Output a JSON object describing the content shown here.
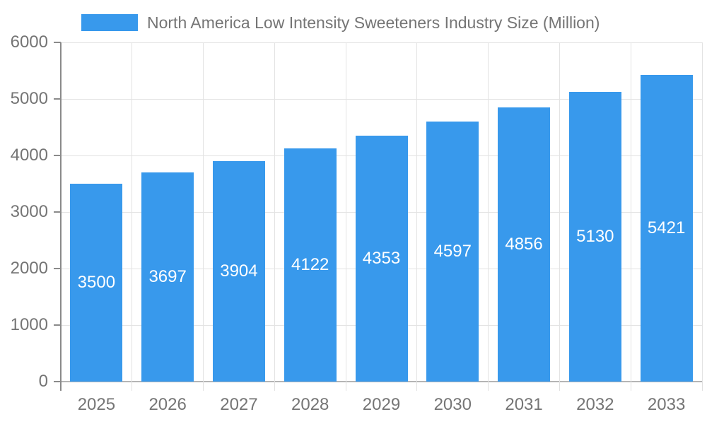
{
  "chart_data": {
    "type": "bar",
    "series_name": "North America Low Intensity Sweeteners Industry Size (Million)",
    "categories": [
      "2025",
      "2026",
      "2027",
      "2028",
      "2029",
      "2030",
      "2031",
      "2032",
      "2033"
    ],
    "values": [
      3500,
      3697,
      3904,
      4122,
      4353,
      4597,
      4856,
      5130,
      5421
    ],
    "ylim": [
      0,
      6000
    ],
    "yticks": [
      0,
      1000,
      2000,
      3000,
      4000,
      5000,
      6000
    ],
    "grid": true,
    "legend_position": "top",
    "value_labels": "inside-center",
    "colors": {
      "bar": "#3899EC",
      "axis_text": "#757575",
      "value_text": "#FFFFFF",
      "grid": "#E3E3E3",
      "y_axis_line": "#8A8A8A",
      "zero_line": "#B5B5B5",
      "category_tick": "#E0E0E0",
      "background": "#FFFFFF"
    }
  }
}
